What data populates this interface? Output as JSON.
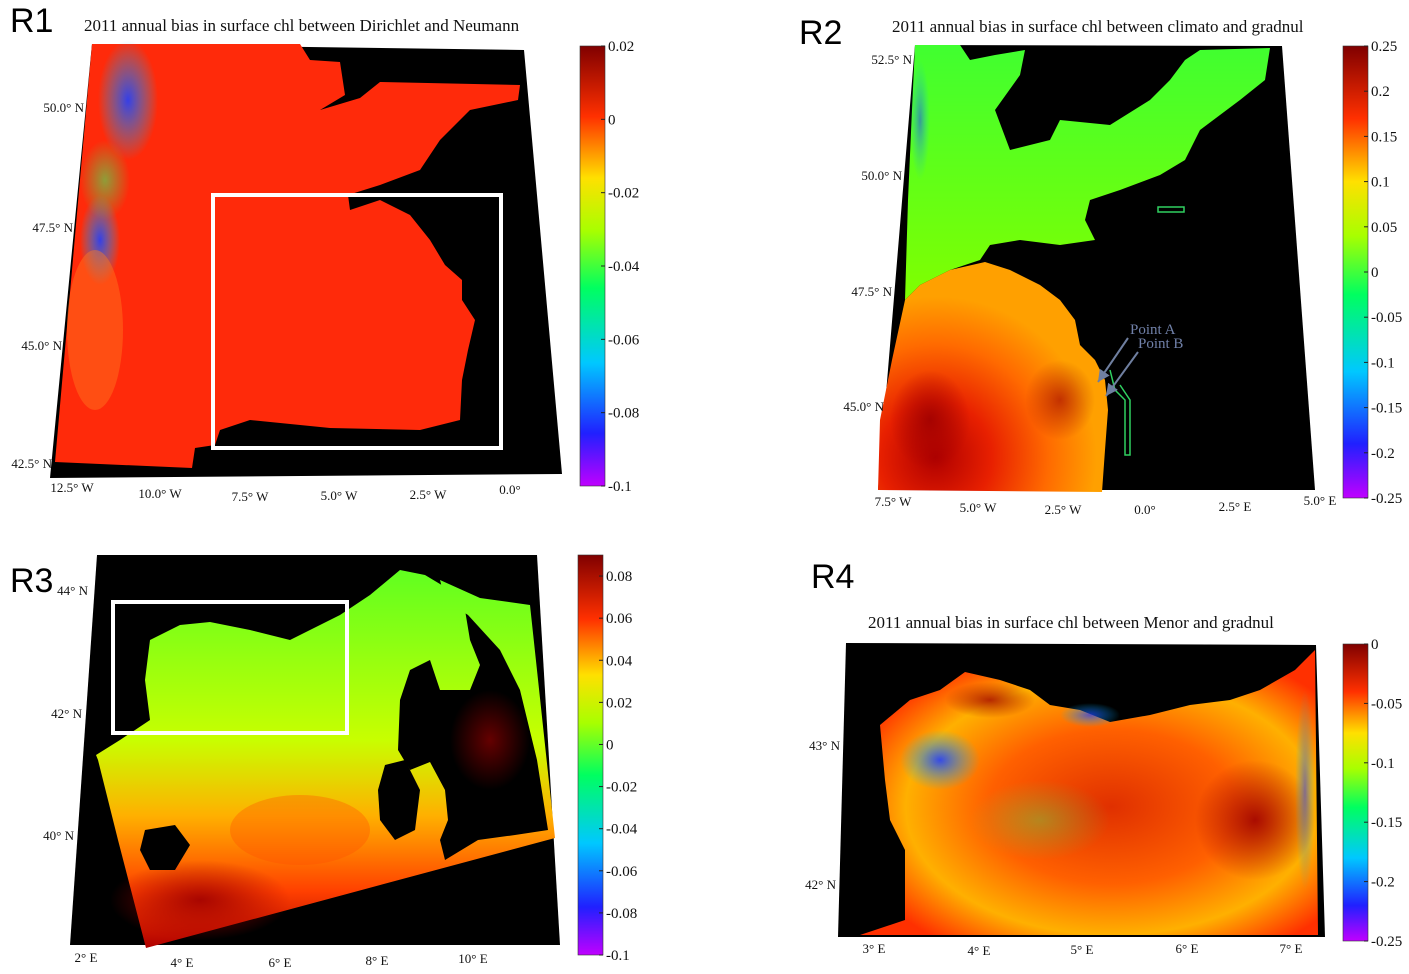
{
  "panels": [
    {
      "label": "R1",
      "title": "2011 annual bias in surface chl between Dirichlet and Neumann",
      "lat_ticks": [
        "50.0° N",
        "47.5° N",
        "45.0° N",
        "42.5° N"
      ],
      "lon_ticks": [
        "12.5° W",
        "10.0° W",
        "7.5° W",
        "5.0° W",
        "2.5° W",
        "0.0°"
      ],
      "colorbar": {
        "ticks": [
          "0.02",
          "0",
          "-0.02",
          "-0.04",
          "-0.06",
          "-0.08",
          "-0.1"
        ],
        "range": [
          -0.1,
          0.02
        ]
      },
      "highlight_box": true
    },
    {
      "label": "R2",
      "title": "2011 annual bias in surface chl between climato and gradnul",
      "lat_ticks": [
        "52.5° N",
        "50.0° N",
        "47.5° N",
        "45.0° N"
      ],
      "lon_ticks": [
        "7.5° W",
        "5.0° W",
        "2.5° W",
        "0.0°",
        "2.5° E",
        "5.0° E"
      ],
      "annotations": [
        "Point A",
        "Point B"
      ],
      "colorbar": {
        "ticks": [
          "0.25",
          "0.2",
          "0.15",
          "0.1",
          "0.05",
          "0",
          "-0.05",
          "-0.1",
          "-0.15",
          "-0.2",
          "-0.25"
        ],
        "range": [
          -0.25,
          0.25
        ]
      }
    },
    {
      "label": "R3",
      "title": "",
      "lat_ticks": [
        "44° N",
        "42° N",
        "40° N"
      ],
      "lon_ticks": [
        "2° E",
        "4° E",
        "6° E",
        "8° E",
        "10° E"
      ],
      "colorbar": {
        "ticks": [
          "0.08",
          "0.06",
          "0.04",
          "0.02",
          "0",
          "-0.02",
          "-0.04",
          "-0.06",
          "-0.08",
          "-0.1"
        ],
        "range": [
          -0.1,
          0.09
        ]
      },
      "highlight_box": true
    },
    {
      "label": "R4",
      "title": "2011 annual bias in surface chl between Menor and gradnul",
      "lat_ticks": [
        "43° N",
        "42° N"
      ],
      "lon_ticks": [
        "3° E",
        "4° E",
        "5° E",
        "6° E",
        "7° E"
      ],
      "colorbar": {
        "ticks": [
          "0",
          "-0.05",
          "-0.1",
          "-0.15",
          "-0.2",
          "-0.25"
        ],
        "range": [
          -0.25,
          0
        ]
      }
    }
  ],
  "chart_data": [
    {
      "type": "heatmap",
      "title": "2011 annual bias in surface chl between Dirichlet and Neumann",
      "x_ticks": [
        "12.5° W",
        "10.0° W",
        "7.5° W",
        "5.0° W",
        "2.5° W",
        "0.0°"
      ],
      "y_ticks": [
        "50.0° N",
        "47.5° N",
        "45.0° N",
        "42.5° N"
      ],
      "colorbar_range": [
        -0.1,
        0.02
      ],
      "colorbar_ticks": [
        0.02,
        0,
        -0.02,
        -0.04,
        -0.06,
        -0.08,
        -0.1
      ]
    },
    {
      "type": "heatmap",
      "title": "2011 annual bias in surface chl between climato and gradnul",
      "x_ticks": [
        "7.5° W",
        "5.0° W",
        "2.5° W",
        "0.0°",
        "2.5° E",
        "5.0° E"
      ],
      "y_ticks": [
        "52.5° N",
        "50.0° N",
        "47.5° N",
        "45.0° N"
      ],
      "annotations": [
        "Point A",
        "Point B"
      ],
      "colorbar_range": [
        -0.25,
        0.25
      ],
      "colorbar_ticks": [
        0.25,
        0.2,
        0.15,
        0.1,
        0.05,
        0,
        -0.05,
        -0.1,
        -0.15,
        -0.2,
        -0.25
      ]
    },
    {
      "type": "heatmap",
      "title": "",
      "x_ticks": [
        "2° E",
        "4° E",
        "6° E",
        "8° E",
        "10° E"
      ],
      "y_ticks": [
        "44° N",
        "42° N",
        "40° N"
      ],
      "colorbar_range": [
        -0.1,
        0.09
      ],
      "colorbar_ticks": [
        0.08,
        0.06,
        0.04,
        0.02,
        0,
        -0.02,
        -0.04,
        -0.06,
        -0.08,
        -0.1
      ]
    },
    {
      "type": "heatmap",
      "title": "2011 annual bias in surface chl between Menor and gradnul",
      "x_ticks": [
        "3° E",
        "4° E",
        "5° E",
        "6° E",
        "7° E"
      ],
      "y_ticks": [
        "43° N",
        "42° N"
      ],
      "colorbar_range": [
        -0.25,
        0
      ],
      "colorbar_ticks": [
        0,
        -0.05,
        -0.1,
        -0.15,
        -0.2,
        -0.25
      ]
    }
  ],
  "colors": {
    "land": "#000000",
    "r1_field": "#ff2a0a",
    "box": "#ffffff",
    "arrow": "#6f7fa0"
  }
}
